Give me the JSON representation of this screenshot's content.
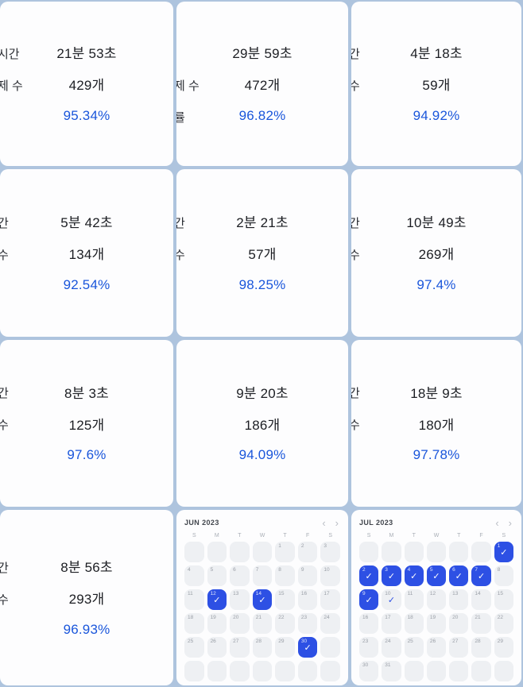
{
  "colors": {
    "background": "#aec4de",
    "card": "#fdfdfe",
    "text": "#1c1e23",
    "accent_blue": "#1a56db",
    "calendar_blue": "#2d50e4",
    "day_cell_gray": "#eef0f3"
  },
  "icons": {
    "check": "✓",
    "prev": "‹",
    "next": "›"
  },
  "stat_cards": [
    {
      "rows": [
        {
          "label": "시간",
          "value": "21분 53초",
          "accent": false
        },
        {
          "label": "제 수",
          "value": "429개",
          "accent": false
        },
        {
          "label": "",
          "value": "95.34%",
          "accent": true
        }
      ]
    },
    {
      "rows": [
        {
          "label": "",
          "value": "29분 59초",
          "accent": false
        },
        {
          "label": "제 수",
          "value": "472개",
          "accent": false
        },
        {
          "label": "률",
          "value": "96.82%",
          "accent": true
        }
      ]
    },
    {
      "rows": [
        {
          "label": "간",
          "value": "4분 18초",
          "accent": false
        },
        {
          "label": "수",
          "value": "59개",
          "accent": false
        },
        {
          "label": "",
          "value": "94.92%",
          "accent": true
        }
      ]
    },
    {
      "rows": [
        {
          "label": "간",
          "value": "5분 42초",
          "accent": false
        },
        {
          "label": "수",
          "value": "134개",
          "accent": false
        },
        {
          "label": "",
          "value": "92.54%",
          "accent": true
        }
      ]
    },
    {
      "rows": [
        {
          "label": "간",
          "value": "2분 21초",
          "accent": false
        },
        {
          "label": "수",
          "value": "57개",
          "accent": false
        },
        {
          "label": "",
          "value": "98.25%",
          "accent": true
        }
      ]
    },
    {
      "rows": [
        {
          "label": "간",
          "value": "10분 49초",
          "accent": false
        },
        {
          "label": "수",
          "value": "269개",
          "accent": false
        },
        {
          "label": "",
          "value": "97.4%",
          "accent": true
        }
      ]
    },
    {
      "rows": [
        {
          "label": "간",
          "value": "8분 3초",
          "accent": false
        },
        {
          "label": "수",
          "value": "125개",
          "accent": false
        },
        {
          "label": "",
          "value": "97.6%",
          "accent": true
        }
      ]
    },
    {
      "rows": [
        {
          "label": "",
          "value": "9분 20초",
          "accent": false
        },
        {
          "label": "",
          "value": "186개",
          "accent": false
        },
        {
          "label": "",
          "value": "94.09%",
          "accent": true
        }
      ]
    },
    {
      "rows": [
        {
          "label": "간",
          "value": "18분 9초",
          "accent": false
        },
        {
          "label": "수",
          "value": "180개",
          "accent": false
        },
        {
          "label": "",
          "value": "97.78%",
          "accent": true
        }
      ]
    },
    {
      "rows": [
        {
          "label": "간",
          "value": "8분 56초",
          "accent": false
        },
        {
          "label": "수",
          "value": "293개",
          "accent": false
        },
        {
          "label": "",
          "value": "96.93%",
          "accent": true
        }
      ]
    }
  ],
  "calendars": [
    {
      "title": "JUN 2023",
      "weekdays": [
        "S",
        "M",
        "T",
        "W",
        "T",
        "F",
        "S"
      ],
      "weeks": [
        [
          null,
          null,
          null,
          null,
          1,
          2,
          3
        ],
        [
          4,
          5,
          6,
          7,
          8,
          9,
          10
        ],
        [
          11,
          12,
          13,
          14,
          15,
          16,
          17
        ],
        [
          18,
          19,
          20,
          21,
          22,
          23,
          24
        ],
        [
          25,
          26,
          27,
          28,
          29,
          30,
          null
        ],
        [
          null,
          null,
          null,
          null,
          null,
          null,
          null
        ]
      ],
      "checked": [
        12,
        14,
        30
      ],
      "light_checked": []
    },
    {
      "title": "JUL 2023",
      "weekdays": [
        "S",
        "M",
        "T",
        "W",
        "T",
        "F",
        "S"
      ],
      "weeks": [
        [
          null,
          null,
          null,
          null,
          null,
          null,
          1
        ],
        [
          2,
          3,
          4,
          5,
          6,
          7,
          8
        ],
        [
          9,
          10,
          11,
          12,
          13,
          14,
          15
        ],
        [
          16,
          17,
          18,
          19,
          20,
          21,
          22
        ],
        [
          23,
          24,
          25,
          26,
          27,
          28,
          29
        ],
        [
          30,
          31,
          null,
          null,
          null,
          null,
          null
        ]
      ],
      "checked": [
        1,
        2,
        3,
        4,
        5,
        6,
        7,
        9
      ],
      "light_checked": [
        10
      ]
    }
  ]
}
